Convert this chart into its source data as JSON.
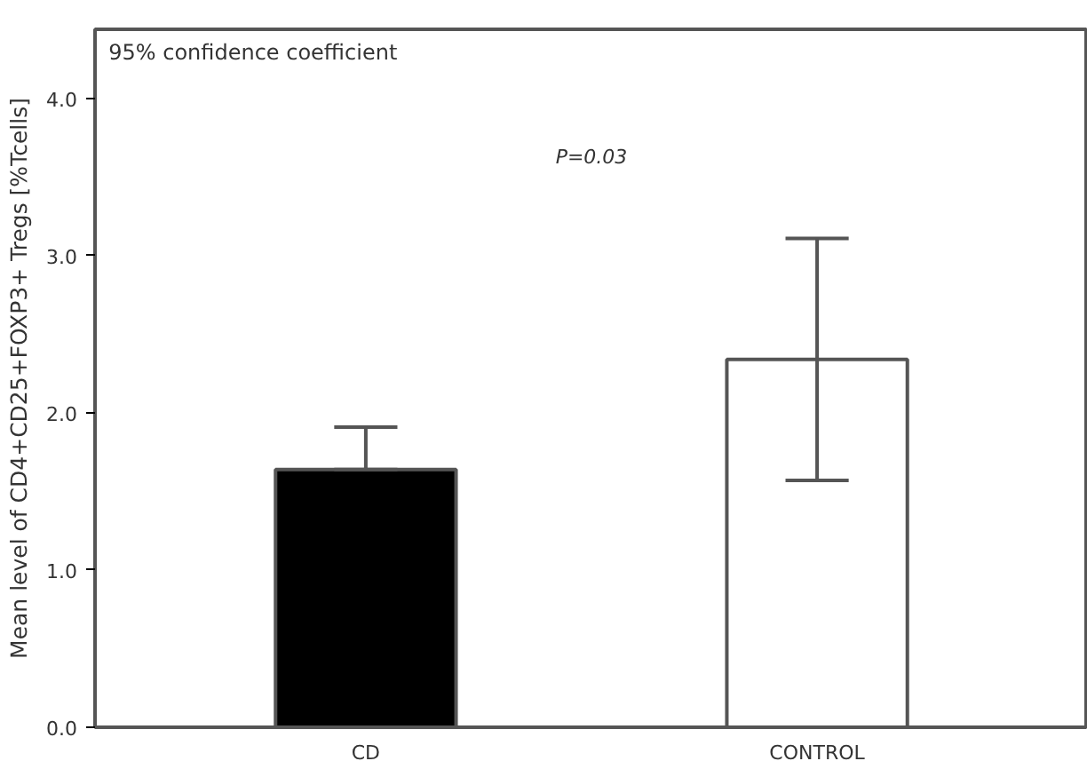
{
  "chart_data": {
    "type": "bar",
    "ylabel": "Mean level of CD4+CD25+FOXP3+ Tregs [%Tcells]",
    "categories": [
      "CD",
      "CONTROL"
    ],
    "values": [
      1.64,
      2.34
    ],
    "colors": [
      "#000000",
      "#ffffff"
    ],
    "errors": [
      [
        1.64,
        1.91
      ],
      [
        1.57,
        3.11
      ]
    ],
    "ylim": [
      0,
      4.44
    ],
    "yticks": [
      {
        "value": 0,
        "label": "0.0"
      },
      {
        "value": 1,
        "label": "1.0"
      },
      {
        "value": 2,
        "label": "2.0"
      },
      {
        "value": 3,
        "label": "3.0"
      },
      {
        "value": 4,
        "label": "4.0"
      }
    ],
    "grid": false,
    "annotations": [
      "95% confidence coefficient",
      "P=0.03"
    ]
  }
}
